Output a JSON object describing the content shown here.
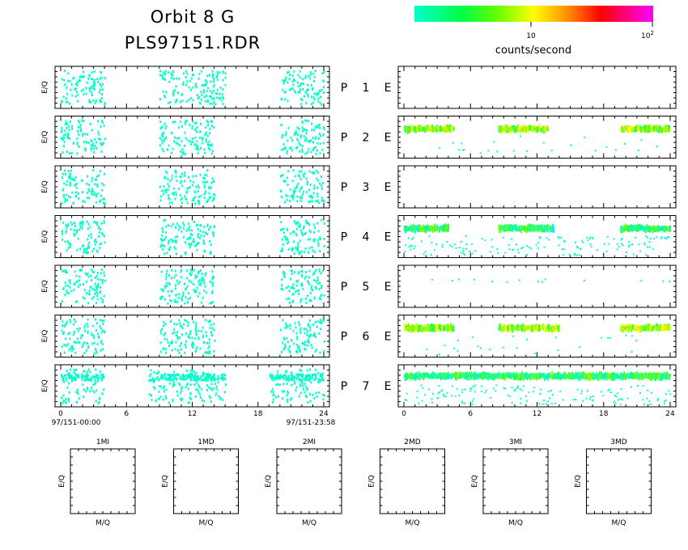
{
  "header": {
    "title_line1": "Orbit 8 G",
    "title_line2": "PLS97151.RDR"
  },
  "colorbar": {
    "label": "counts/second",
    "tick_10": "10",
    "tick_100_base": "10",
    "tick_100_exp": "2",
    "gradient_colors": [
      "#00ffcc",
      "#00ff44",
      "#55ff00",
      "#ffff00",
      "#ff8800",
      "#ff0000",
      "#ff0088",
      "#ff00ff"
    ]
  },
  "left_panels": {
    "ylabel": "E/Q",
    "start_time": "97/151-00:00",
    "end_time": "97/151-23:58"
  },
  "channel_labels": [
    {
      "p": "P",
      "n": "1",
      "e": "E"
    },
    {
      "p": "P",
      "n": "2",
      "e": "E"
    },
    {
      "p": "P",
      "n": "3",
      "e": "E"
    },
    {
      "p": "P",
      "n": "4",
      "e": "E"
    },
    {
      "p": "P",
      "n": "5",
      "e": "E"
    },
    {
      "p": "P",
      "n": "6",
      "e": "E"
    },
    {
      "p": "P",
      "n": "7",
      "e": "E"
    }
  ],
  "mass_panels": [
    {
      "title": "1MI",
      "xlabel": "M/Q",
      "ylabel": "E/Q"
    },
    {
      "title": "1MD",
      "xlabel": "M/Q",
      "ylabel": "E/Q"
    },
    {
      "title": "2MI",
      "xlabel": "M/Q",
      "ylabel": "E/Q"
    },
    {
      "title": "2MD",
      "xlabel": "M/Q",
      "ylabel": "E/Q"
    },
    {
      "title": "3MI",
      "xlabel": "M/Q",
      "ylabel": "E/Q"
    },
    {
      "title": "3MD",
      "xlabel": "M/Q",
      "ylabel": "E/Q"
    }
  ],
  "chart_data": {
    "type": "heatmap",
    "x_unit": "hours",
    "xlim": [
      0,
      24
    ],
    "x_ticks": [
      "0",
      "6",
      "12",
      "18",
      "24"
    ],
    "colorbar_range": [
      1,
      100
    ],
    "colorbar_scale": "log",
    "left_panels": [
      {
        "channel": "P 1",
        "active_hours": [
          [
            0,
            4
          ],
          [
            9,
            15
          ],
          [
            20,
            24
          ]
        ],
        "level": "low"
      },
      {
        "channel": "P 2",
        "active_hours": [
          [
            0,
            4
          ],
          [
            9,
            14
          ],
          [
            20,
            24
          ]
        ],
        "level": "low"
      },
      {
        "channel": "P 3",
        "active_hours": [
          [
            0,
            4
          ],
          [
            9,
            14
          ],
          [
            20,
            24
          ]
        ],
        "level": "low"
      },
      {
        "channel": "P 4",
        "active_hours": [
          [
            0,
            4
          ],
          [
            9,
            14
          ],
          [
            20,
            24
          ]
        ],
        "level": "low"
      },
      {
        "channel": "P 5",
        "active_hours": [
          [
            0,
            4
          ],
          [
            9,
            14
          ],
          [
            20,
            24
          ]
        ],
        "level": "low"
      },
      {
        "channel": "P 6",
        "active_hours": [
          [
            0,
            4
          ],
          [
            9,
            14
          ],
          [
            20,
            24
          ]
        ],
        "level": "low"
      },
      {
        "channel": "P 7",
        "active_hours": [
          [
            0,
            4
          ],
          [
            8,
            15
          ],
          [
            19,
            24
          ]
        ],
        "level": "low"
      }
    ],
    "right_panels": [
      {
        "channel": "E 1",
        "bands": []
      },
      {
        "channel": "E 2",
        "bands": [
          {
            "hours": [
              [
                0,
                4.5
              ],
              [
                8.5,
                13
              ],
              [
                19.5,
                24
              ]
            ],
            "peak": "yellow"
          }
        ]
      },
      {
        "channel": "E 3",
        "bands": []
      },
      {
        "channel": "E 4",
        "bands": [
          {
            "hours": [
              [
                0,
                4
              ],
              [
                8.5,
                13.5
              ],
              [
                19.5,
                24
              ]
            ],
            "peak": "green"
          }
        ]
      },
      {
        "channel": "E 5",
        "bands": []
      },
      {
        "channel": "E 6",
        "bands": [
          {
            "hours": [
              [
                0,
                4.5
              ],
              [
                8.5,
                14
              ],
              [
                19.5,
                24
              ]
            ],
            "peak": "yellow"
          }
        ]
      },
      {
        "channel": "E 7",
        "bands": [
          {
            "hours": [
              [
                0,
                24
              ]
            ],
            "peak": "green"
          }
        ]
      }
    ]
  }
}
